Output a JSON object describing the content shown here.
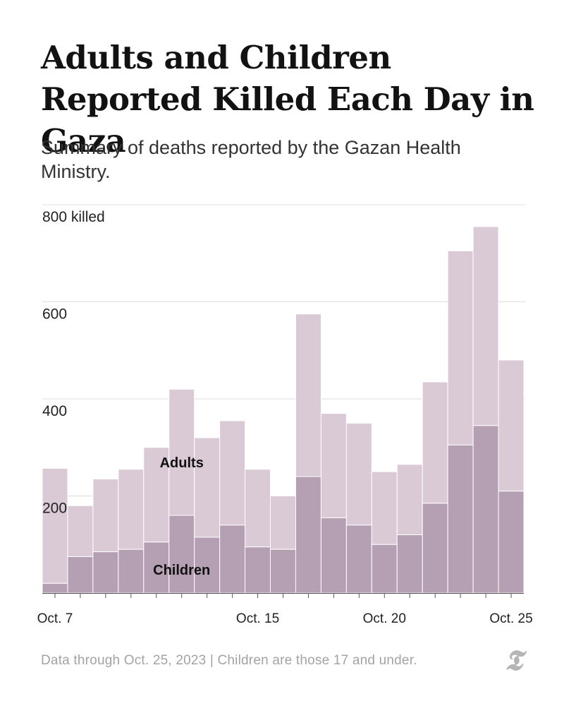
{
  "header": {
    "title": "Adults and Children Reported Killed Each Day in Gaza",
    "subtitle": "Summary of deaths reported by the Gazan Health Ministry."
  },
  "footer": {
    "note": "Data through Oct. 25, 2023 | Children are those 17 and under.",
    "logo_text": "T"
  },
  "colors": {
    "adults": "#d9cad6",
    "children": "#b59fb2",
    "bar_border": "#ffffff",
    "grid": "#dcdcdc",
    "text": "#222222"
  },
  "chart_data": {
    "type": "bar",
    "stacked": true,
    "title": "Adults and Children Reported Killed Each Day in Gaza",
    "ylabel": "killed",
    "ylim": [
      0,
      800
    ],
    "yticks": [
      {
        "value": 800,
        "label": "800 killed"
      },
      {
        "value": 600,
        "label": "600"
      },
      {
        "value": 400,
        "label": "400"
      },
      {
        "value": 200,
        "label": "200"
      }
    ],
    "x_tick_labels": [
      {
        "index": 0,
        "label": "Oct. 7"
      },
      {
        "index": 8,
        "label": "Oct. 15"
      },
      {
        "index": 13,
        "label": "Oct. 20"
      },
      {
        "index": 18,
        "label": "Oct. 25"
      }
    ],
    "categories": [
      "Oct 7",
      "Oct 8",
      "Oct 9",
      "Oct 10",
      "Oct 11",
      "Oct 12",
      "Oct 13",
      "Oct 14",
      "Oct 15",
      "Oct 16",
      "Oct 17",
      "Oct 18",
      "Oct 19",
      "Oct 20",
      "Oct 21",
      "Oct 22",
      "Oct 23",
      "Oct 24",
      "Oct 25"
    ],
    "series": [
      {
        "name": "Children",
        "values": [
          20,
          75,
          85,
          90,
          105,
          160,
          115,
          140,
          95,
          90,
          240,
          155,
          140,
          100,
          120,
          185,
          305,
          345,
          210
        ]
      },
      {
        "name": "Adults",
        "values": [
          237,
          105,
          150,
          165,
          195,
          260,
          205,
          215,
          160,
          110,
          335,
          215,
          210,
          150,
          145,
          250,
          400,
          410,
          270
        ]
      }
    ],
    "annotations": [
      {
        "text": "Adults",
        "series": "Adults",
        "index": 5
      },
      {
        "text": "Children",
        "series": "Children",
        "index": 5
      }
    ]
  }
}
